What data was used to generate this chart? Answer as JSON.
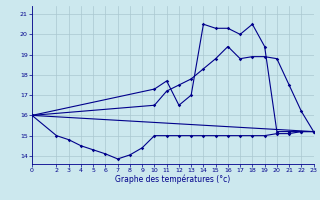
{
  "xlabel": "Graphe des températures (°c)",
  "bg_color": "#cce8ee",
  "grid_color": "#aac8d0",
  "line_color": "#00008b",
  "xlim": [
    0,
    23
  ],
  "ylim": [
    13.6,
    21.4
  ],
  "yticks": [
    14,
    15,
    16,
    17,
    18,
    19,
    20,
    21
  ],
  "xticks": [
    0,
    2,
    3,
    4,
    5,
    6,
    7,
    8,
    9,
    10,
    11,
    12,
    13,
    14,
    15,
    16,
    17,
    18,
    19,
    20,
    21,
    22,
    23
  ],
  "line1_x": [
    0,
    2,
    3,
    4,
    5,
    6,
    7,
    8,
    9,
    10,
    11,
    12,
    13,
    14,
    15,
    16,
    17,
    18,
    19,
    20,
    21,
    22,
    23
  ],
  "line1_y": [
    16.0,
    15.0,
    14.8,
    14.5,
    14.3,
    14.1,
    13.85,
    14.05,
    14.4,
    15.0,
    15.0,
    15.0,
    15.0,
    15.0,
    15.0,
    15.0,
    15.0,
    15.0,
    15.0,
    15.1,
    15.1,
    15.2,
    15.2
  ],
  "line2_x": [
    0,
    23
  ],
  "line2_y": [
    16.0,
    15.2
  ],
  "line3_x": [
    0,
    10,
    11,
    12,
    13,
    14,
    15,
    16,
    17,
    18,
    19,
    20,
    21,
    22,
    23
  ],
  "line3_y": [
    16.0,
    17.3,
    17.7,
    16.5,
    17.0,
    20.5,
    20.3,
    20.3,
    20.0,
    20.5,
    19.4,
    15.2,
    15.2,
    15.2,
    15.2
  ],
  "line4_x": [
    0,
    10,
    11,
    12,
    13,
    14,
    15,
    16,
    17,
    18,
    19,
    20,
    21,
    22,
    23
  ],
  "line4_y": [
    16.0,
    16.5,
    17.2,
    17.5,
    17.8,
    18.3,
    18.8,
    19.4,
    18.8,
    18.9,
    18.9,
    18.8,
    17.5,
    16.2,
    15.2
  ]
}
